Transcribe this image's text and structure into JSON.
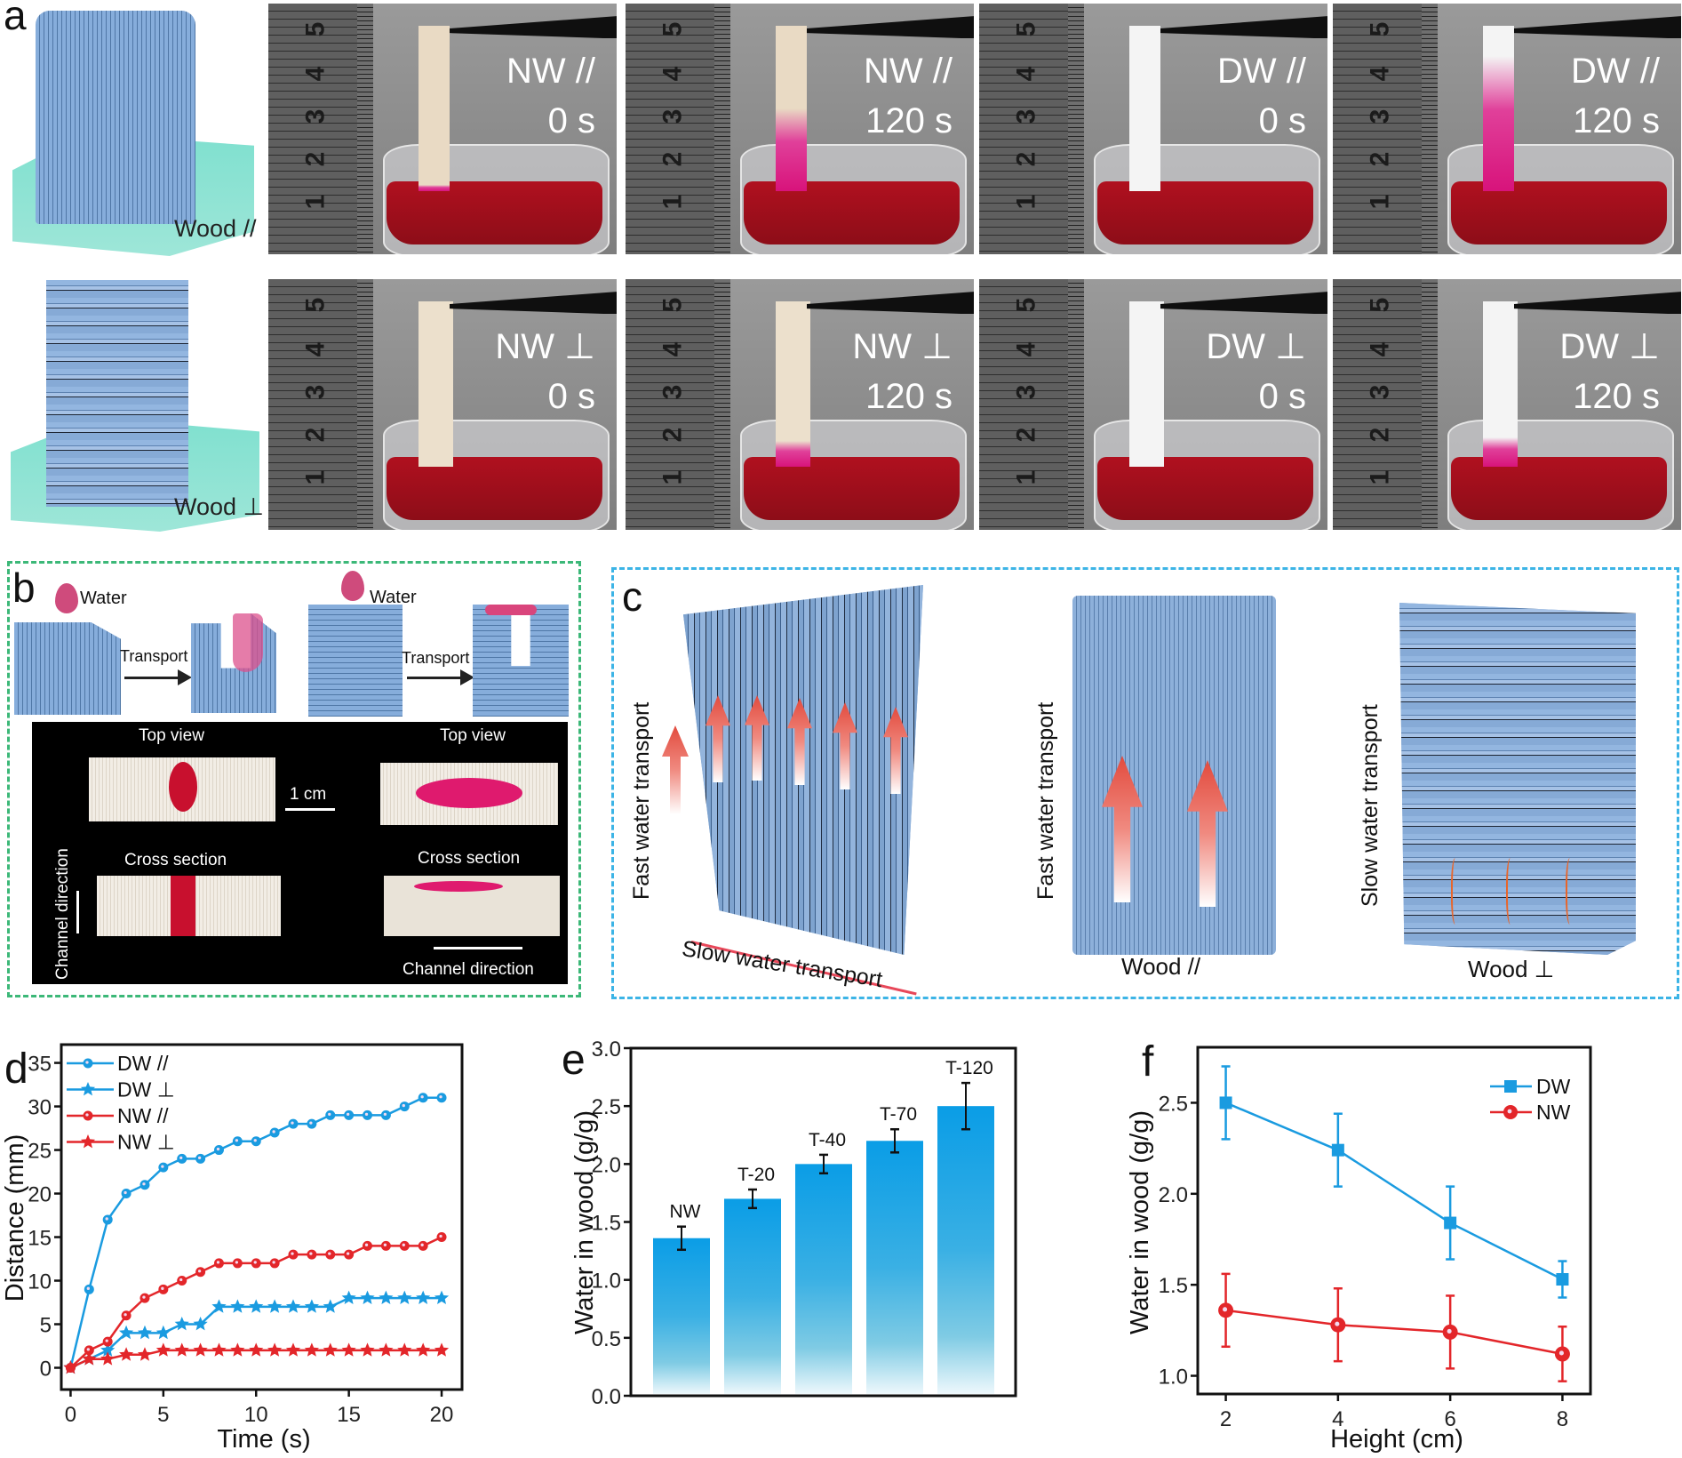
{
  "panel_a": {
    "label": "a",
    "models": [
      {
        "label": "Wood //"
      },
      {
        "label": "Wood ⊥"
      }
    ],
    "ruler_ticks": [
      "5",
      "4",
      "3",
      "2",
      "1"
    ],
    "photos": [
      {
        "sample": "NW //",
        "time": "0 s",
        "strip_color": "#e9dac4"
      },
      {
        "sample": "NW //",
        "time": "120 s",
        "strip_color": "#e9dac4"
      },
      {
        "sample": "DW //",
        "time": "0 s",
        "strip_color": "#f4f4f4"
      },
      {
        "sample": "DW //",
        "time": "120 s",
        "strip_color": "#f4f4f4"
      },
      {
        "sample": "NW ⊥",
        "time": "0 s",
        "strip_color": "#ece0cc"
      },
      {
        "sample": "NW ⊥",
        "time": "120 s",
        "strip_color": "#ece0cc"
      },
      {
        "sample": "DW ⊥",
        "time": "0 s",
        "strip_color": "#f4f4f4"
      },
      {
        "sample": "DW ⊥",
        "time": "120 s",
        "strip_color": "#f4f4f4"
      }
    ]
  },
  "panel_b": {
    "label": "b",
    "border_color": "#3cb878",
    "water_1": "Water",
    "water_2": "Water",
    "transport_1": "Transport",
    "transport_2": "Transport",
    "top_view_1": "Top view",
    "top_view_2": "Top view",
    "scale_bar": "1 cm",
    "cross_section_1": "Cross section",
    "cross_section_2": "Cross section",
    "channel_direction_1": "Channel direction",
    "channel_direction_2": "Channel direction"
  },
  "panel_c": {
    "label": "c",
    "border_color": "#3cb4e6",
    "fast_1": "Fast water transport",
    "slow_1": "Slow water transport",
    "fast_2": "Fast water transport",
    "wood_parallel": "Wood //",
    "slow_2": "Slow water transport",
    "wood_perp": "Wood ⊥"
  },
  "chart_data": [
    {
      "panel_label": "d",
      "type": "line",
      "xlabel": "Time (s)",
      "ylabel": "Distance (mm)",
      "xlim": [
        -0.5,
        21.1
      ],
      "ylim": [
        -2.5,
        37.1
      ],
      "xticks": [
        "0",
        "5",
        "10",
        "15",
        "20"
      ],
      "yticks": [
        "0",
        "5",
        "10",
        "15",
        "20",
        "25",
        "30",
        "35"
      ],
      "grid": false,
      "legend": "top-left",
      "x": [
        0,
        1,
        2,
        3,
        4,
        5,
        6,
        7,
        8,
        9,
        10,
        11,
        12,
        13,
        14,
        15,
        16,
        17,
        18,
        19,
        20
      ],
      "series": [
        {
          "name": "DW //",
          "marker": "circle",
          "color": "#1a9be0",
          "values": [
            0,
            9,
            17,
            20,
            21,
            23,
            24,
            24,
            25,
            26,
            26,
            27,
            28,
            28,
            29,
            29,
            29,
            29,
            30,
            31,
            31
          ]
        },
        {
          "name": "DW ⊥",
          "marker": "star",
          "color": "#1a9be0",
          "values": [
            0,
            1,
            2,
            4,
            4,
            4,
            5,
            5,
            7,
            7,
            7,
            7,
            7,
            7,
            7,
            8,
            8,
            8,
            8,
            8,
            8
          ]
        },
        {
          "name": "NW //",
          "marker": "circle",
          "color": "#e3262a",
          "values": [
            0,
            2,
            3,
            6,
            8,
            9,
            10,
            11,
            12,
            12,
            12,
            12,
            13,
            13,
            13,
            13,
            14,
            14,
            14,
            14,
            15
          ]
        },
        {
          "name": "NW ⊥",
          "marker": "star",
          "color": "#e3262a",
          "values": [
            0,
            1,
            1,
            1.5,
            1.5,
            2,
            2,
            2,
            2,
            2,
            2,
            2,
            2,
            2,
            2,
            2,
            2,
            2,
            2,
            2,
            2
          ]
        }
      ]
    },
    {
      "panel_label": "e",
      "type": "bar",
      "xlabel": "",
      "ylabel": "Water in wood (g/g)",
      "ylim": [
        0,
        3
      ],
      "yticks": [
        "0.0",
        "0.5",
        "1.0",
        "1.5",
        "2.0",
        "2.5",
        "3.0"
      ],
      "grid": false,
      "categories": [
        "NW",
        "T-20",
        "T-40",
        "T-70",
        "T-120"
      ],
      "values": [
        1.36,
        1.7,
        2.0,
        2.2,
        2.5
      ],
      "errors": [
        0.1,
        0.08,
        0.08,
        0.1,
        0.2
      ],
      "color": "#0a9de6"
    },
    {
      "panel_label": "f",
      "type": "line",
      "xlabel": "Height (cm)",
      "ylabel": "Water in wood (g/g)",
      "xlim": [
        1.5,
        8.5
      ],
      "ylim": [
        0.9,
        2.805
      ],
      "xticks": [
        "2",
        "4",
        "6",
        "8"
      ],
      "yticks": [
        "1.0",
        "1.5",
        "2.0",
        "2.5"
      ],
      "grid": false,
      "legend": "top-right",
      "x": [
        2,
        4,
        6,
        8
      ],
      "series": [
        {
          "name": "DW",
          "marker": "square",
          "color": "#1a9be0",
          "values": [
            2.5,
            2.24,
            1.84,
            1.53
          ],
          "errors": [
            0.2,
            0.2,
            0.2,
            0.1
          ]
        },
        {
          "name": "NW",
          "marker": "circle",
          "color": "#e3262a",
          "values": [
            1.36,
            1.28,
            1.24,
            1.12
          ],
          "errors": [
            0.2,
            0.2,
            0.2,
            0.15
          ]
        }
      ]
    }
  ]
}
